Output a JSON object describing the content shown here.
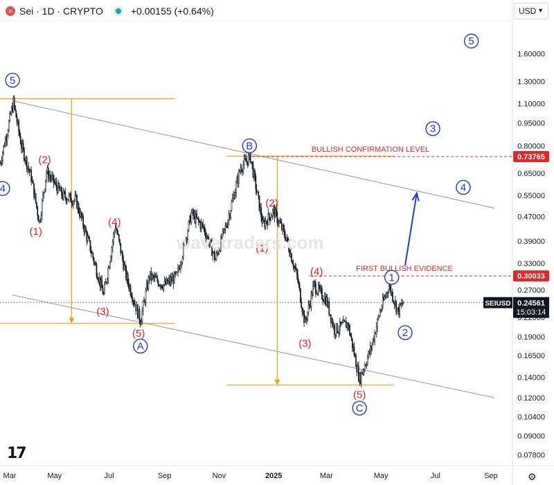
{
  "header": {
    "symbol": "Sei · 1D · CRYPTO",
    "change": "+0.00155 (+0.64%)",
    "logo_glyph": "≡",
    "status_color": "#26a69a"
  },
  "currency_selector": {
    "value": "USD"
  },
  "watermark": "wavetraders.com",
  "branding": {
    "logo": "17",
    "settings_icon": "gear-icon"
  },
  "colors": {
    "candle": "#131722",
    "wave_red": "#e0201b",
    "wave_blue": "#1c39d4",
    "projection": "#f39c12",
    "channel": "#a5a5a5",
    "level": "#d82b2b",
    "arrow": "#1c39d4"
  },
  "chart_data": {
    "type": "candlestick",
    "symbol": "SEIUSD",
    "interval": "1D",
    "y_scale": "log",
    "ylim": [
      0.072,
      2.05
    ],
    "y_ticks": [
      "1.60000",
      "1.30000",
      "1.10000",
      "0.95000",
      "0.80000",
      "0.65000",
      "0.55000",
      "0.47000",
      "0.39000",
      "0.33000",
      "0.27000",
      "0.22000",
      "0.19000",
      "0.16500",
      "0.14000",
      "0.12000",
      "0.10400",
      "0.09000",
      "0.07800"
    ],
    "x_ticks": [
      "Mar",
      "May",
      "Jul",
      "Sep",
      "Nov",
      "2025",
      "Mar",
      "May",
      "Jul",
      "Sep"
    ],
    "x_range": [
      "2024-03-01",
      "2025-09-25"
    ],
    "price_path": [
      [
        "2024-03-01",
        0.7
      ],
      [
        "2024-03-10",
        0.92
      ],
      [
        "2024-03-16",
        1.11
      ],
      [
        "2024-03-25",
        0.8
      ],
      [
        "2024-04-05",
        0.63
      ],
      [
        "2024-04-14",
        0.45
      ],
      [
        "2024-04-22",
        0.66
      ],
      [
        "2024-05-10",
        0.55
      ],
      [
        "2024-05-25",
        0.53
      ],
      [
        "2024-06-10",
        0.37
      ],
      [
        "2024-06-25",
        0.26
      ],
      [
        "2024-07-08",
        0.44
      ],
      [
        "2024-07-20",
        0.3
      ],
      [
        "2024-08-05",
        0.215
      ],
      [
        "2024-08-15",
        0.3
      ],
      [
        "2024-09-01",
        0.28
      ],
      [
        "2024-09-15",
        0.3
      ],
      [
        "2024-10-01",
        0.48
      ],
      [
        "2024-10-15",
        0.43
      ],
      [
        "2024-10-28",
        0.34
      ],
      [
        "2024-11-10",
        0.45
      ],
      [
        "2024-11-25",
        0.68
      ],
      [
        "2024-12-06",
        0.735
      ],
      [
        "2024-12-20",
        0.44
      ],
      [
        "2025-01-01",
        0.49
      ],
      [
        "2025-01-15",
        0.4
      ],
      [
        "2025-01-27",
        0.3
      ],
      [
        "2025-02-05",
        0.21
      ],
      [
        "2025-02-15",
        0.28
      ],
      [
        "2025-03-01",
        0.25
      ],
      [
        "2025-03-10",
        0.2
      ],
      [
        "2025-03-25",
        0.21
      ],
      [
        "2025-04-07",
        0.138
      ],
      [
        "2025-04-20",
        0.175
      ],
      [
        "2025-04-30",
        0.23
      ],
      [
        "2025-05-10",
        0.28
      ],
      [
        "2025-05-20",
        0.23
      ],
      [
        "2025-05-26",
        0.24561
      ]
    ],
    "last_price": {
      "value": 0.24561,
      "label": "SEIUSD",
      "value_label": "0.24561",
      "countdown": "15:03:14"
    },
    "levels": [
      {
        "name": "BULLISH CONFIRMATION LEVEL",
        "value": 0.73765,
        "label": "0.73765"
      },
      {
        "name": "FIRST BULLISH EVIDENCE",
        "value": 0.30033,
        "label": "0.30033"
      }
    ],
    "channel_lines": [
      {
        "from": [
          "2024-03-16",
          1.12
        ],
        "to": [
          "2025-09-05",
          0.5
        ]
      },
      {
        "from": [
          "2024-03-15",
          0.26
        ],
        "to": [
          "2025-09-05",
          0.12
        ]
      }
    ],
    "projections": [
      {
        "top": 1.14,
        "bottom": 0.21,
        "from": "2024-03-16",
        "to": "2024-08-05",
        "arrow_at": "2024-05-20"
      },
      {
        "top": 0.74,
        "bottom": 0.132,
        "from": "2024-11-25",
        "to": "2025-04-07",
        "arrow_at": "2025-01-05"
      }
    ],
    "arrow": {
      "from": [
        "2025-05-28",
        0.325
      ],
      "to": [
        "2025-06-10",
        0.56
      ]
    },
    "wave_labels": [
      {
        "text": "5",
        "date": "2024-03-15",
        "price": 1.31,
        "circle": true,
        "color": "blue"
      },
      {
        "text": "4",
        "date": "2024-03-04",
        "price": 0.58,
        "circle": true,
        "color": "blue"
      },
      {
        "text": "(1)",
        "date": "2024-04-10",
        "price": 0.42,
        "color": "red"
      },
      {
        "text": "(2)",
        "date": "2024-04-20",
        "price": 0.72,
        "color": "red"
      },
      {
        "text": "(3)",
        "date": "2024-06-24",
        "price": 0.23,
        "color": "red"
      },
      {
        "text": "(4)",
        "date": "2024-07-07",
        "price": 0.45,
        "color": "red"
      },
      {
        "text": "(5)",
        "date": "2024-08-03",
        "price": 0.195,
        "color": "red"
      },
      {
        "text": "A",
        "date": "2024-08-05",
        "price": 0.177,
        "circle": true,
        "color": "blue"
      },
      {
        "text": "B",
        "date": "2024-12-05",
        "price": 0.8,
        "circle": true,
        "color": "blue"
      },
      {
        "text": "(1)",
        "date": "2024-12-19",
        "price": 0.37,
        "color": "red"
      },
      {
        "text": "(2)",
        "date": "2024-12-30",
        "price": 0.52,
        "color": "red"
      },
      {
        "text": "(3)",
        "date": "2025-02-05",
        "price": 0.181,
        "color": "red"
      },
      {
        "text": "(4)",
        "date": "2025-02-18",
        "price": 0.31,
        "color": "red"
      },
      {
        "text": "(5)",
        "date": "2025-04-07",
        "price": 0.123,
        "color": "red"
      },
      {
        "text": "C",
        "date": "2025-04-07",
        "price": 0.111,
        "circle": true,
        "color": "blue"
      },
      {
        "text": "1",
        "date": "2025-05-13",
        "price": 0.297,
        "circle": true,
        "color": "blue"
      },
      {
        "text": "2",
        "date": "2025-05-28",
        "price": 0.196,
        "circle": true,
        "color": "blue"
      },
      {
        "text": "3",
        "date": "2025-06-28",
        "price": 0.91,
        "circle": true,
        "color": "blue"
      },
      {
        "text": "4",
        "date": "2025-08-01",
        "price": 0.585,
        "circle": true,
        "color": "blue"
      },
      {
        "text": "5",
        "date": "2025-08-10",
        "price": 1.76,
        "circle": true,
        "color": "blue"
      }
    ]
  }
}
